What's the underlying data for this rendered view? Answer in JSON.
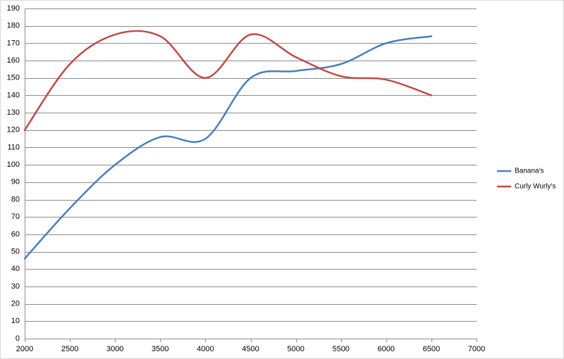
{
  "chart_data": {
    "type": "line",
    "x": [
      2000,
      2500,
      3000,
      3500,
      4000,
      4500,
      5000,
      5500,
      6000,
      6500
    ],
    "series": [
      {
        "name": "Banana's",
        "color": "#4a7ebb",
        "values": [
          46,
          75,
          100,
          116,
          115,
          150,
          154,
          158,
          170,
          174
        ]
      },
      {
        "name": "Curly Wurly's",
        "color": "#be4b48",
        "values": [
          120,
          158,
          175,
          174,
          150,
          175,
          162,
          151,
          149,
          140
        ]
      }
    ],
    "xlim": [
      2000,
      7000
    ],
    "xticks": [
      2000,
      2500,
      3000,
      3500,
      4000,
      4500,
      5000,
      5500,
      6000,
      6500,
      7000
    ],
    "ylim": [
      0,
      190
    ],
    "yticks": [
      0,
      10,
      20,
      30,
      40,
      50,
      60,
      70,
      80,
      90,
      100,
      110,
      120,
      130,
      140,
      150,
      160,
      170,
      180,
      190
    ],
    "grid": true,
    "smooth": true,
    "legend": "right"
  }
}
